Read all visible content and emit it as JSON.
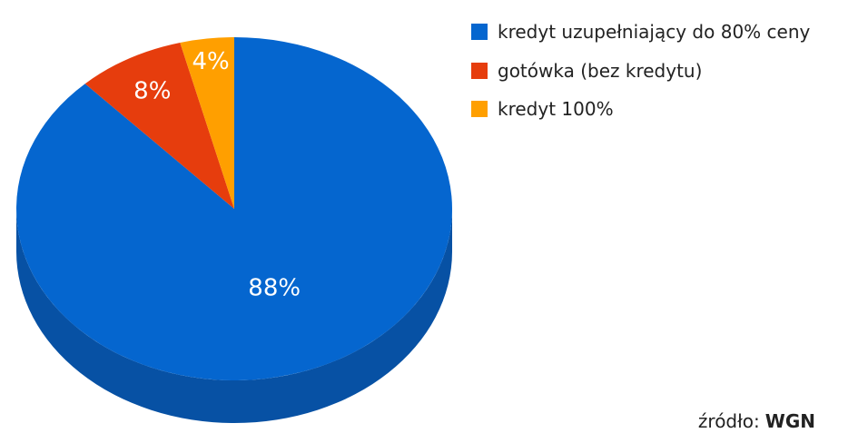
{
  "chart_data": {
    "type": "pie",
    "title": "",
    "categories": [
      "kredyt uzupełniający do 80% ceny",
      "gotówka (bez kredytu)",
      "kredyt 100%"
    ],
    "values": [
      88,
      8,
      4
    ],
    "value_labels": [
      "88%",
      "8%",
      "4%"
    ],
    "colors": [
      "#0566cf",
      "#e63d0d",
      "#ff9f00"
    ],
    "side_colors": [
      "#0751a4",
      "#bc3409",
      "#cf8100"
    ],
    "legend_position": "top-right",
    "style": "3d"
  },
  "source": {
    "prefix": "źródło:",
    "name": "WGN"
  }
}
